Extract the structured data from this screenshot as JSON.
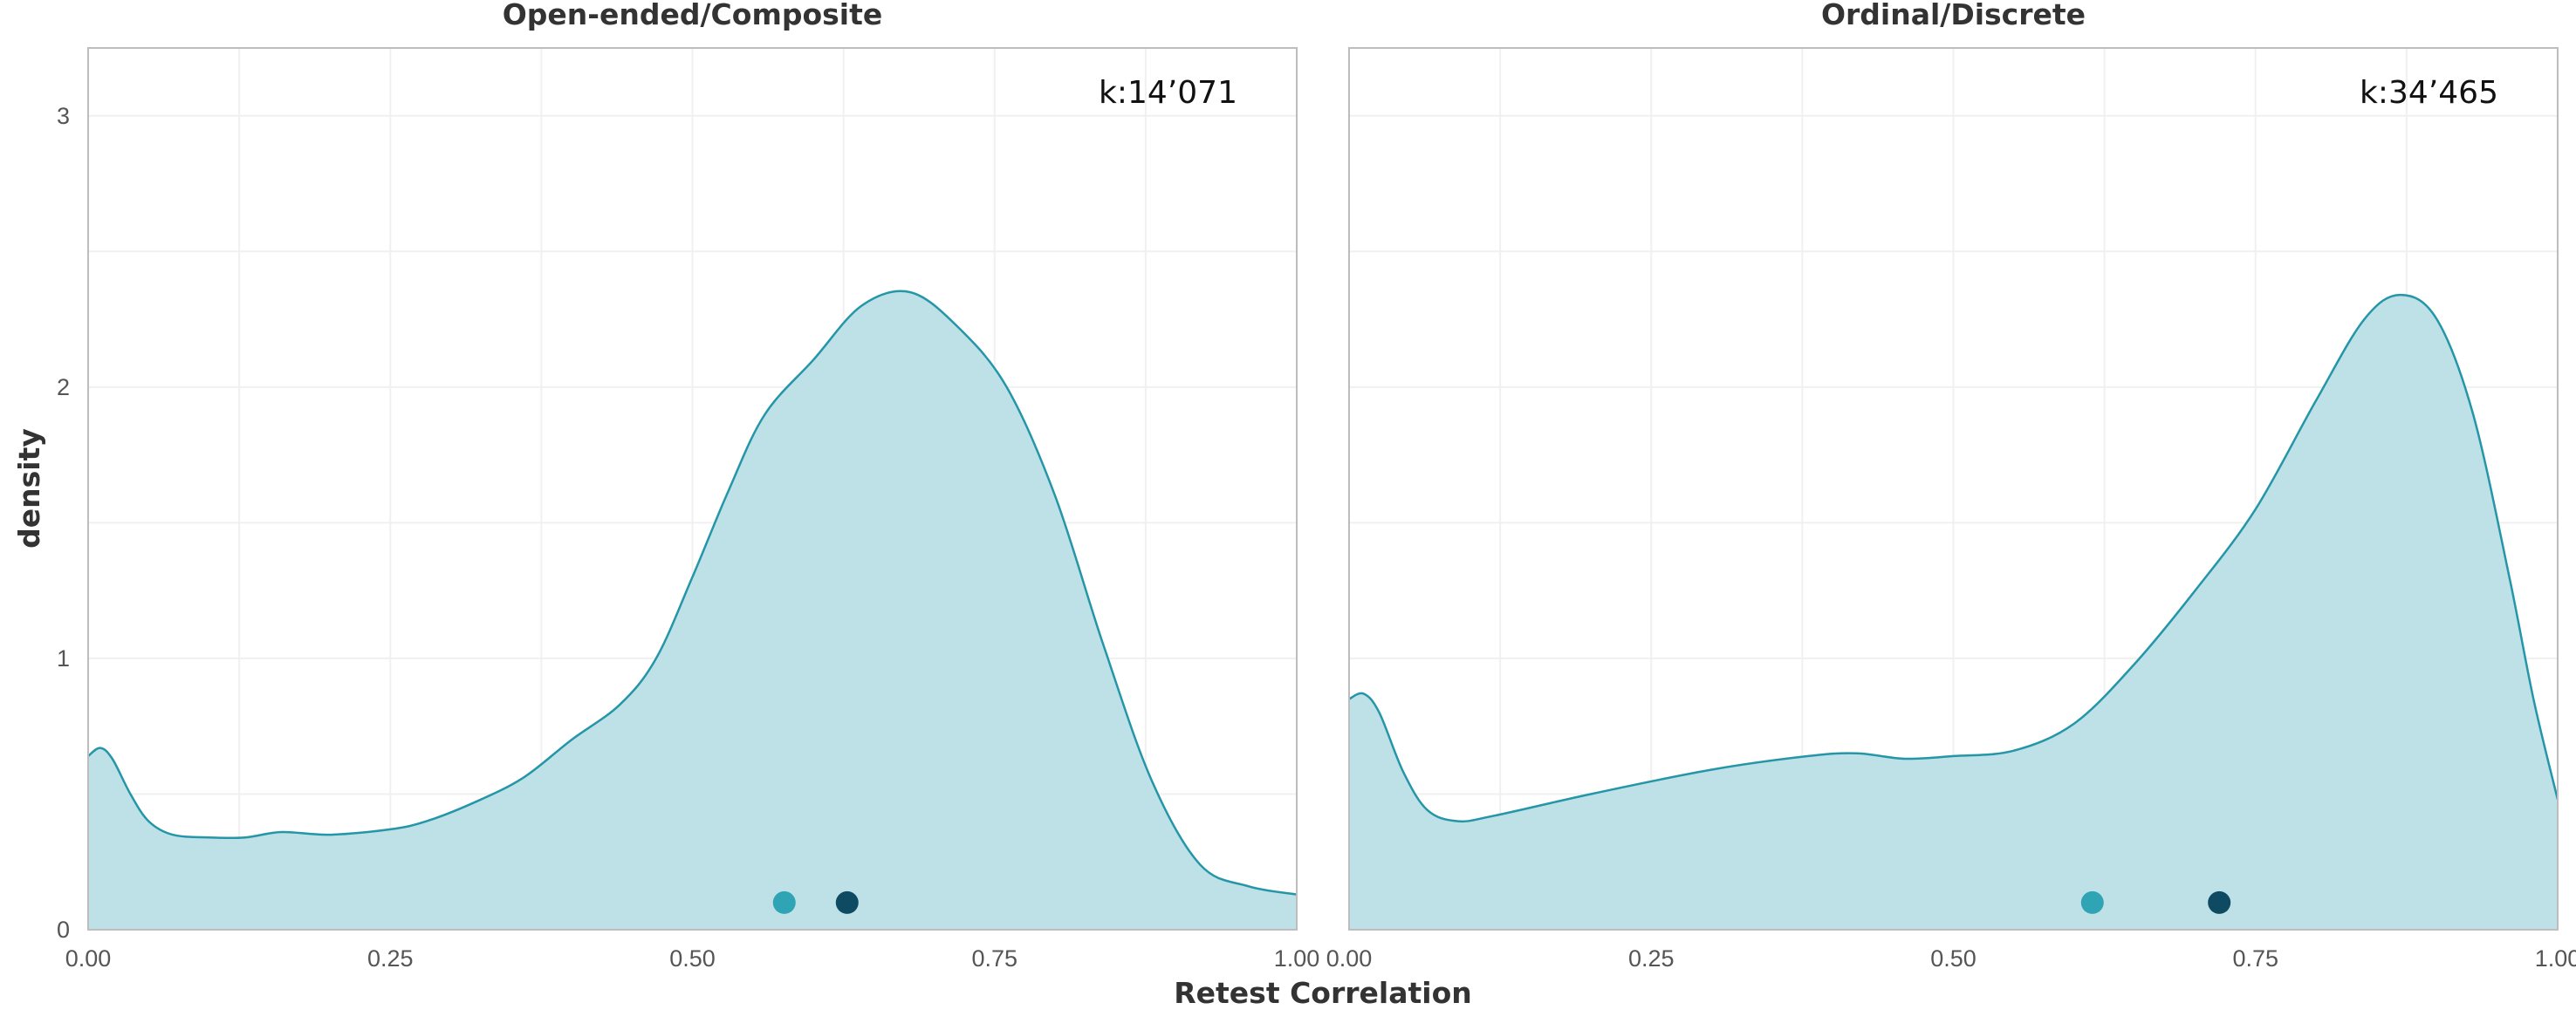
{
  "chart_data": {
    "type": "area",
    "xlabel": "Retest Correlation",
    "ylabel": "density",
    "xlim": [
      0,
      1
    ],
    "ylim": [
      0,
      3.25
    ],
    "x_ticks": [
      "0.00",
      "0.25",
      "0.50",
      "0.75",
      "1.00"
    ],
    "x_tick_values": [
      0,
      0.25,
      0.5,
      0.75,
      1
    ],
    "y_ticks": [
      "0",
      "1",
      "2",
      "3"
    ],
    "y_tick_values": [
      0,
      1,
      2,
      3
    ],
    "grid": true,
    "colors": {
      "fill": "#bde1e6",
      "line": "#2496a8",
      "point_light": "#2ea4b5",
      "point_dark": "#0f4a63"
    },
    "panels": [
      {
        "title": "Open-ended/Composite",
        "annotation": "k:14’071",
        "curve": [
          [
            0.0,
            0.64
          ],
          [
            0.01,
            0.67
          ],
          [
            0.02,
            0.63
          ],
          [
            0.035,
            0.5
          ],
          [
            0.05,
            0.4
          ],
          [
            0.07,
            0.35
          ],
          [
            0.1,
            0.34
          ],
          [
            0.13,
            0.34
          ],
          [
            0.16,
            0.36
          ],
          [
            0.2,
            0.35
          ],
          [
            0.25,
            0.37
          ],
          [
            0.28,
            0.4
          ],
          [
            0.32,
            0.47
          ],
          [
            0.36,
            0.56
          ],
          [
            0.4,
            0.7
          ],
          [
            0.44,
            0.83
          ],
          [
            0.47,
            1.0
          ],
          [
            0.5,
            1.3
          ],
          [
            0.53,
            1.62
          ],
          [
            0.56,
            1.9
          ],
          [
            0.6,
            2.1
          ],
          [
            0.64,
            2.3
          ],
          [
            0.68,
            2.35
          ],
          [
            0.72,
            2.22
          ],
          [
            0.76,
            2.0
          ],
          [
            0.8,
            1.6
          ],
          [
            0.84,
            1.05
          ],
          [
            0.88,
            0.55
          ],
          [
            0.92,
            0.24
          ],
          [
            0.96,
            0.16
          ],
          [
            1.0,
            0.13
          ]
        ],
        "points": [
          {
            "x": 0.576,
            "y": 0.1,
            "color": "#2ea4b5"
          },
          {
            "x": 0.628,
            "y": 0.1,
            "color": "#0f4a63"
          }
        ]
      },
      {
        "title": "Ordinal/Discrete",
        "annotation": "k:34’465",
        "curve": [
          [
            0.0,
            0.85
          ],
          [
            0.012,
            0.87
          ],
          [
            0.025,
            0.8
          ],
          [
            0.045,
            0.58
          ],
          [
            0.065,
            0.44
          ],
          [
            0.09,
            0.4
          ],
          [
            0.12,
            0.42
          ],
          [
            0.2,
            0.5
          ],
          [
            0.3,
            0.59
          ],
          [
            0.38,
            0.64
          ],
          [
            0.42,
            0.65
          ],
          [
            0.46,
            0.63
          ],
          [
            0.5,
            0.64
          ],
          [
            0.55,
            0.66
          ],
          [
            0.6,
            0.76
          ],
          [
            0.65,
            0.98
          ],
          [
            0.7,
            1.25
          ],
          [
            0.75,
            1.55
          ],
          [
            0.8,
            1.95
          ],
          [
            0.84,
            2.25
          ],
          [
            0.87,
            2.34
          ],
          [
            0.9,
            2.25
          ],
          [
            0.93,
            1.9
          ],
          [
            0.96,
            1.3
          ],
          [
            0.98,
            0.85
          ],
          [
            1.0,
            0.48
          ]
        ],
        "points": [
          {
            "x": 0.615,
            "y": 0.1,
            "color": "#2ea4b5"
          },
          {
            "x": 0.72,
            "y": 0.1,
            "color": "#0f4a63"
          }
        ]
      }
    ]
  }
}
